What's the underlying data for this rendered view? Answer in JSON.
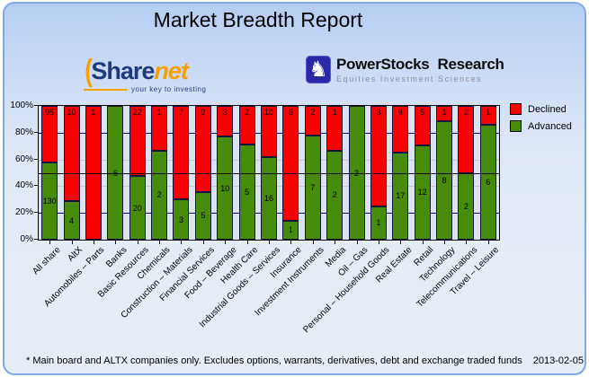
{
  "header": {
    "title": "Market Breadth Report"
  },
  "logos": {
    "sharenet": {
      "paren": "(",
      "part1": "Share",
      "part2": "net",
      "tagline": "your key to investing"
    },
    "powerstocks": {
      "knight_icon": "♞",
      "name1": "PowerStocks",
      "name2": "Research",
      "subtitle": "Equities Investment Sciences"
    }
  },
  "palette": {
    "declined": "#fa0000",
    "advanced": "#478b0b",
    "grid_major": "#00007f",
    "grid_minor": "#c6c6c6",
    "reference_line": "#000000",
    "plot_background": "#dae4f0",
    "card_border": "#84a7e0"
  },
  "chart_data": {
    "type": "bar",
    "subtype": "stacked-100-percent",
    "title": "Market Breadth Report",
    "xlabel": "",
    "ylabel": "",
    "ylim": [
      0,
      100
    ],
    "y_ticks": [
      "100%",
      "80%",
      "60%",
      "40%",
      "20%",
      "0%"
    ],
    "grid": "on",
    "reference_line_at": 50,
    "legend_position": "top-right",
    "categories": [
      "All share",
      "AltX",
      "Automobiles – Parts",
      "Banks",
      "Basic Resources",
      "Chemicals",
      "Construction – Materials",
      "Financial Services",
      "Food – Beverage",
      "Health Care",
      "Industrial Goods – Services",
      "Insurance",
      "Investment Instruments",
      "Media",
      "Oil – Gas",
      "Personal – Household Goods",
      "Real Estate",
      "Retail",
      "Technology",
      "Telecommunications",
      "Travel – Leisure"
    ],
    "series": [
      {
        "name": "Declined",
        "color": "#fa0000",
        "values": [
          95,
          10,
          1,
          0,
          22,
          1,
          7,
          9,
          3,
          2,
          10,
          6,
          2,
          1,
          0,
          3,
          9,
          5,
          1,
          2,
          1
        ]
      },
      {
        "name": "Advanced",
        "color": "#478b0b",
        "values": [
          130,
          4,
          0,
          6,
          20,
          2,
          3,
          5,
          10,
          5,
          16,
          1,
          7,
          2,
          2,
          1,
          17,
          12,
          8,
          2,
          6
        ]
      }
    ]
  },
  "footer": {
    "note": "* Main board and ALTX companies only. Excludes options, warrants, derivatives, debt and exchange traded funds",
    "date": "2013-02-05"
  }
}
